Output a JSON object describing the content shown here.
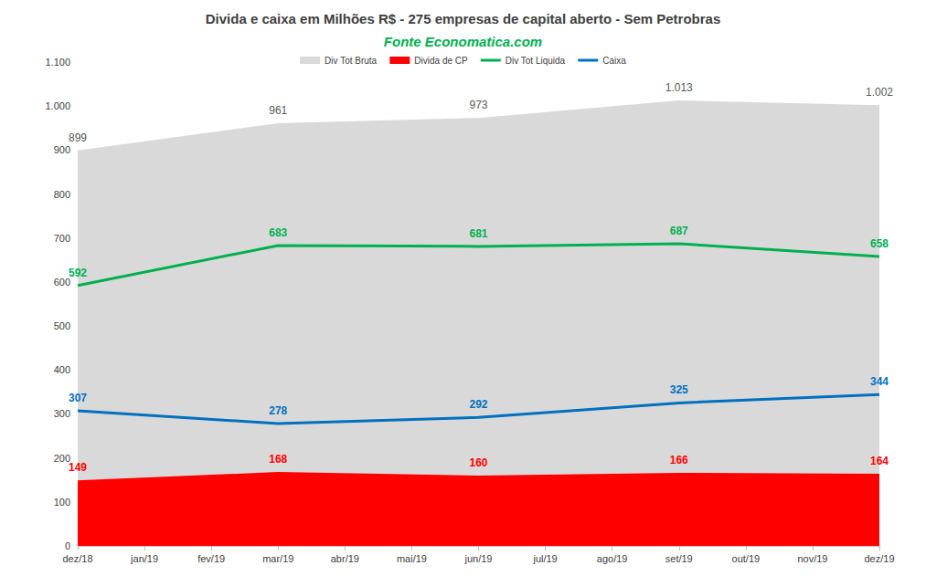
{
  "chart_data": {
    "type": "line",
    "title": "Divida e caixa em Milhões R$ - 275 empresas de capital aberto - Sem Petrobras",
    "subtitle": "Fonte Economatica.com",
    "categories": [
      "dez/18",
      "jan/19",
      "fev/19",
      "mar/19",
      "abr/19",
      "mai/19",
      "jun/19",
      "jul/19",
      "ago/19",
      "set/19",
      "out/19",
      "nov/19",
      "dez/19"
    ],
    "series": [
      {
        "name": "Div Tot Bruta",
        "type": "area",
        "color": "#d9d9d9",
        "values": [
          899,
          null,
          null,
          961,
          null,
          null,
          973,
          null,
          null,
          1013,
          null,
          null,
          1002
        ],
        "value_labels": [
          "899",
          null,
          null,
          "961",
          null,
          null,
          "973",
          null,
          null,
          "1.013",
          null,
          null,
          "1.002"
        ]
      },
      {
        "name": "Divida de CP",
        "type": "area",
        "color": "#ff0000",
        "values": [
          149,
          null,
          null,
          168,
          null,
          null,
          160,
          null,
          null,
          166,
          null,
          null,
          164
        ]
      },
      {
        "name": "Div Tot Liquida",
        "type": "line",
        "color": "#00b050",
        "values": [
          592,
          null,
          null,
          683,
          null,
          null,
          681,
          null,
          null,
          687,
          null,
          null,
          658
        ]
      },
      {
        "name": "Caixa",
        "type": "line",
        "color": "#0070c0",
        "values": [
          307,
          null,
          null,
          278,
          null,
          null,
          292,
          null,
          null,
          325,
          null,
          null,
          344
        ]
      }
    ],
    "ylim": [
      0,
      1100
    ],
    "yticks": [
      0,
      100,
      200,
      300,
      400,
      500,
      600,
      700,
      800,
      900,
      {
        "value": 1000,
        "label": "1.000"
      },
      {
        "value": 1100,
        "label": "1.100"
      }
    ],
    "grid": false,
    "legend": "top",
    "stacked": false,
    "data_labels": true
  }
}
